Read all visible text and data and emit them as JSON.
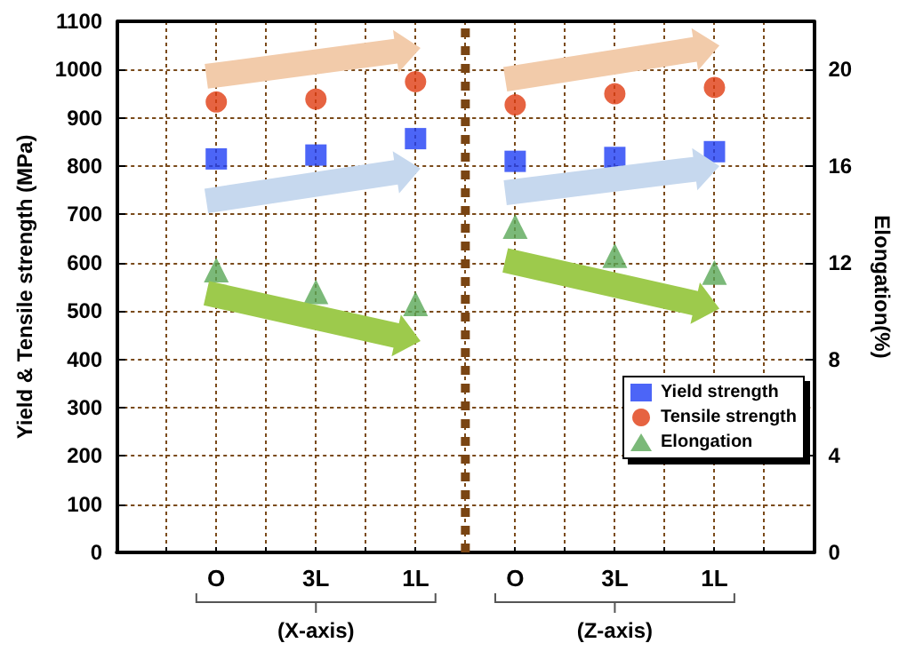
{
  "chart_data": {
    "type": "scatter",
    "ylabel": "Yield & Tensile strength (MPa)",
    "y2label": "Elongation(%)",
    "categories": [
      "O",
      "3L",
      "1L",
      "O",
      "3L",
      "1L"
    ],
    "series": [
      {
        "name": "Yield strength",
        "marker": "square",
        "color": "#1f3ff5",
        "values": [
          815,
          823,
          857,
          810,
          818,
          830
        ]
      },
      {
        "name": "Tensile strength",
        "marker": "circle",
        "color": "#e03c12",
        "values": [
          933,
          939,
          975,
          927,
          950,
          963
        ]
      },
      {
        "name": "Elongation",
        "marker": "triangle",
        "axis": "y2",
        "color": "#5aa857",
        "values": [
          11.7,
          10.8,
          10.3,
          13.5,
          12.3,
          11.6
        ]
      }
    ],
    "ylim": [
      0,
      1100
    ],
    "yticks": [
      0,
      100,
      200,
      300,
      400,
      500,
      600,
      700,
      800,
      900,
      1000,
      1100
    ],
    "y2lim": [
      0,
      22
    ],
    "y2ticks": [
      0,
      4,
      8,
      12,
      16,
      20
    ],
    "annotations": [
      "(X-axis)",
      "(Z-axis)"
    ],
    "grid": true,
    "legend": "bottom right"
  }
}
